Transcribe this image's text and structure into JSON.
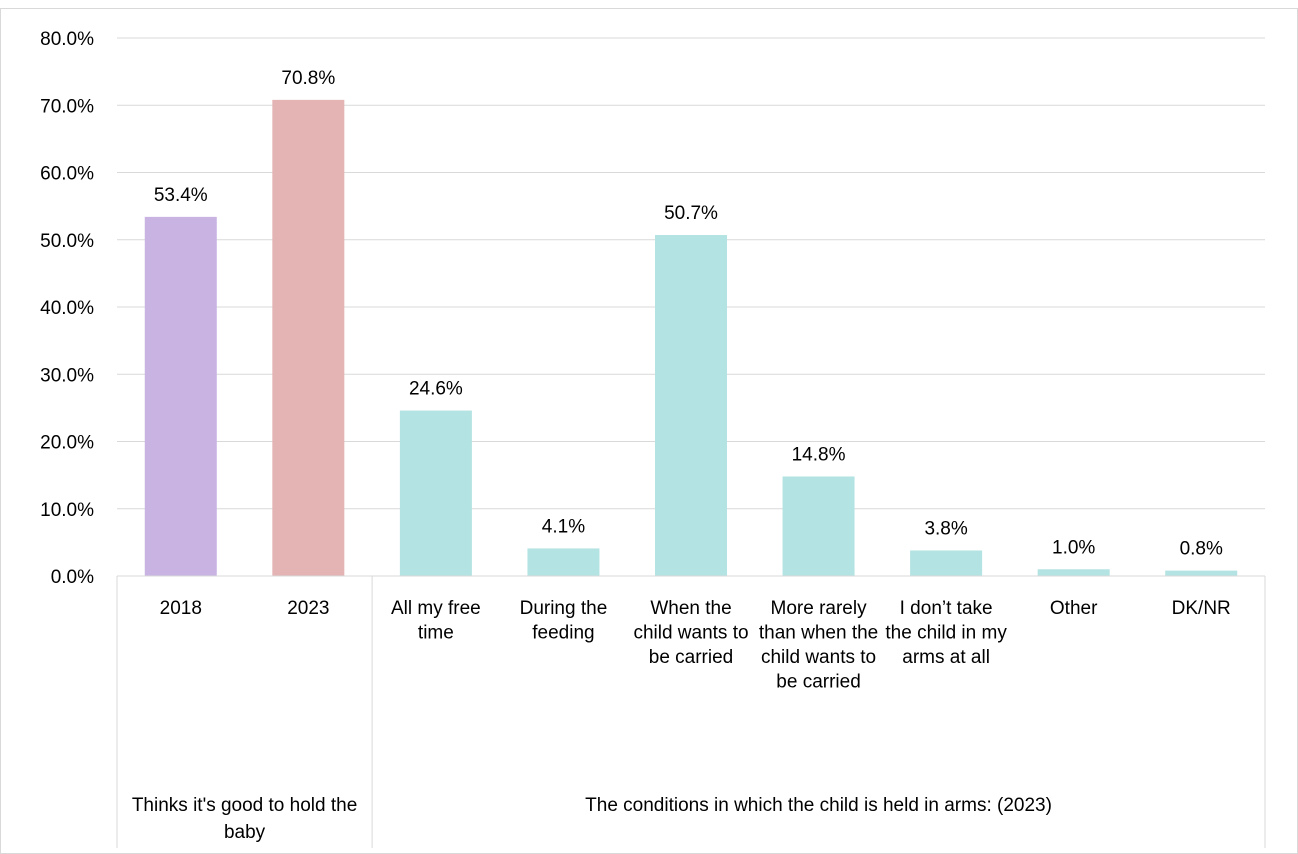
{
  "chart_data": {
    "type": "bar",
    "y_axis": {
      "min": 0,
      "max": 80,
      "step": 10,
      "tick_labels": [
        "0.0%",
        "10.0%",
        "20.0%",
        "30.0%",
        "40.0%",
        "50.0%",
        "60.0%",
        "70.0%",
        "80.0%"
      ]
    },
    "grid": true,
    "categories": [
      {
        "label": "2018",
        "value": 53.4,
        "value_label": "53.4%",
        "color": "#c8b3e3"
      },
      {
        "label": "2023",
        "value": 70.8,
        "value_label": "70.8%",
        "color": "#e4b3b4"
      },
      {
        "label": "All my free time",
        "value": 24.6,
        "value_label": "24.6%",
        "color": "#b3e3e2"
      },
      {
        "label": "During the feeding",
        "value": 4.1,
        "value_label": "4.1%",
        "color": "#b3e3e2"
      },
      {
        "label": "When the child wants to be carried",
        "value": 50.7,
        "value_label": "50.7%",
        "color": "#b3e3e2"
      },
      {
        "label": "More rarely than when the child wants to be carried",
        "value": 14.8,
        "value_label": "14.8%",
        "color": "#b3e3e2"
      },
      {
        "label": "I don’t take the child in my arms at all",
        "value": 3.8,
        "value_label": "3.8%",
        "color": "#b3e3e2"
      },
      {
        "label": "Other",
        "value": 1.0,
        "value_label": "1.0%",
        "color": "#b3e3e2"
      },
      {
        "label": "DK/NR",
        "value": 0.8,
        "value_label": "0.8%",
        "color": "#b3e3e2"
      }
    ],
    "groups": [
      {
        "label": "Thinks it's good to hold the baby",
        "category_count": 2
      },
      {
        "label": "The conditions in which the child is held in arms: (2023)",
        "category_count": 7
      }
    ]
  }
}
